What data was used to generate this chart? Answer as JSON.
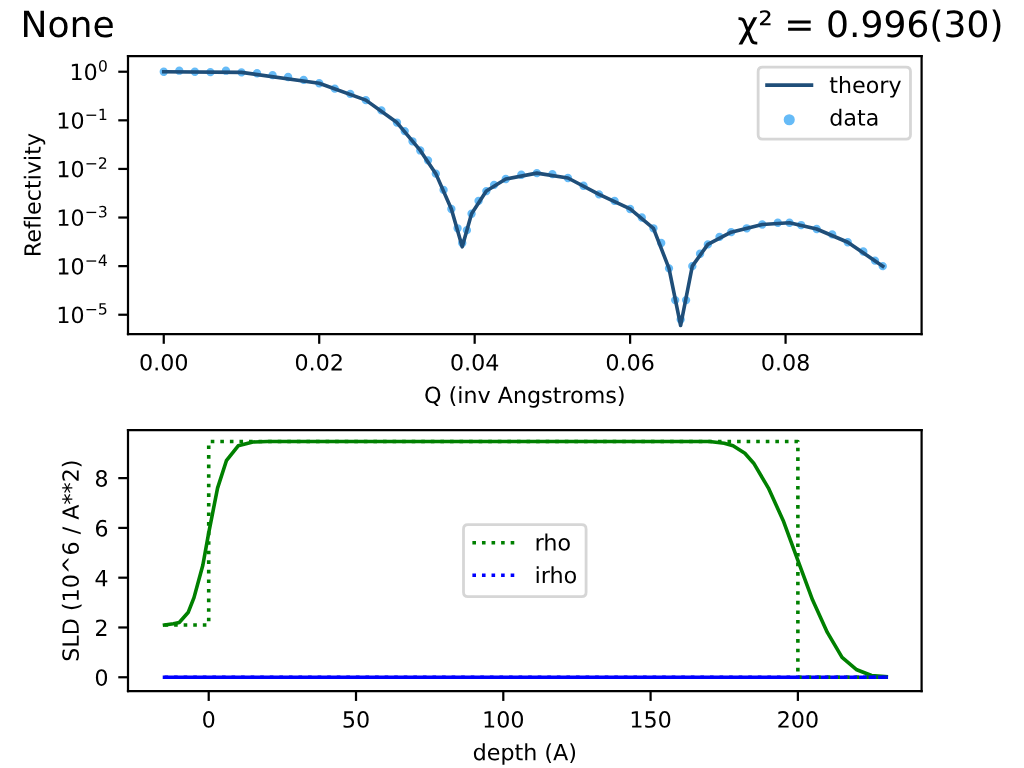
{
  "chart_data": [
    {
      "type": "line",
      "title": "None",
      "annotations": [
        "χ² = 0.996(30)"
      ],
      "xlabel": "Q (inv Angstroms)",
      "ylabel": "Reflectivity",
      "log": "y",
      "legend": "top right",
      "xlim": [
        -0.0046,
        0.0975
      ],
      "ylim": [
        4e-06,
        2.1
      ],
      "xticks": [
        {
          "value": 0,
          "label": "0.00"
        },
        0.02,
        0.04,
        0.06,
        0.08
      ],
      "yticks": [
        {
          "value": 1e-05,
          "label": "10$^{−5}$"
        },
        {
          "value": 0.0001,
          "label": "10$^{−4}$"
        },
        {
          "value": 0.001,
          "label": "10$^{−3}$"
        },
        {
          "value": 0.01,
          "label": "10$^{−2}$"
        },
        {
          "value": 0.1,
          "label": "10$^{−1}$"
        },
        {
          "value": 1,
          "label": "10$^{0}$"
        }
      ],
      "series": [
        {
          "name": "theory",
          "line_style": "solid",
          "color": "#1f4e79",
          "x": [
            0.0,
            0.01,
            0.02,
            0.026,
            0.03,
            0.033,
            0.035,
            0.037,
            0.0384,
            0.0396,
            0.0415,
            0.044,
            0.048,
            0.052,
            0.056,
            0.06,
            0.063,
            0.065,
            0.0665,
            0.068,
            0.07,
            0.073,
            0.077,
            0.0805,
            0.084,
            0.088,
            0.0925
          ],
          "values": [
            1.0,
            0.97,
            0.58,
            0.26,
            0.09,
            0.024,
            0.008,
            0.0015,
            0.00025,
            0.0012,
            0.0035,
            0.0062,
            0.0082,
            0.0065,
            0.003,
            0.0015,
            0.0006,
            9e-05,
            6e-06,
            0.0001,
            0.00028,
            0.0005,
            0.00072,
            0.00078,
            0.00058,
            0.00031,
            0.0001
          ]
        },
        {
          "name": "data",
          "type": "scatter",
          "marker": "circle",
          "color": "#66bbf7",
          "x": [
            0.0,
            0.002,
            0.004,
            0.006,
            0.008,
            0.01,
            0.012,
            0.014,
            0.016,
            0.018,
            0.02,
            0.022,
            0.024,
            0.026,
            0.028,
            0.03,
            0.031,
            0.032,
            0.033,
            0.034,
            0.035,
            0.036,
            0.037,
            0.0378,
            0.0384,
            0.039,
            0.0396,
            0.0405,
            0.0415,
            0.0425,
            0.044,
            0.046,
            0.048,
            0.05,
            0.052,
            0.054,
            0.056,
            0.058,
            0.06,
            0.0615,
            0.063,
            0.064,
            0.065,
            0.0658,
            0.0665,
            0.0672,
            0.068,
            0.069,
            0.07,
            0.0715,
            0.073,
            0.075,
            0.077,
            0.079,
            0.0805,
            0.082,
            0.084,
            0.086,
            0.088,
            0.09,
            0.0915,
            0.0925
          ],
          "values": [
            1.0,
            1.05,
            1.0,
            0.98,
            1.05,
            0.97,
            0.93,
            0.85,
            0.78,
            0.68,
            0.58,
            0.45,
            0.35,
            0.26,
            0.16,
            0.09,
            0.06,
            0.037,
            0.024,
            0.015,
            0.008,
            0.0037,
            0.0015,
            0.0006,
            0.0003,
            0.00055,
            0.0012,
            0.0022,
            0.0035,
            0.0047,
            0.0062,
            0.0076,
            0.0082,
            0.0078,
            0.0065,
            0.0045,
            0.003,
            0.0022,
            0.0015,
            0.001,
            0.0006,
            0.0003,
            9e-05,
            2e-05,
            8e-06,
            2e-05,
            0.0001,
            0.00018,
            0.00028,
            0.0004,
            0.0005,
            0.0006,
            0.00072,
            0.00078,
            0.00078,
            0.0007,
            0.00058,
            0.00045,
            0.00031,
            0.0002,
            0.00013,
            0.0001
          ]
        }
      ]
    },
    {
      "type": "line",
      "xlabel": "depth (A)",
      "ylabel": "SLD (10^6 / A**2)",
      "legend": "center",
      "xlim": [
        -27.4,
        242
      ],
      "ylim": [
        -0.56,
        9.93
      ],
      "xticks": [
        0,
        50,
        100,
        150,
        200
      ],
      "yticks": [
        0,
        2,
        4,
        6,
        8
      ],
      "series": [
        {
          "line_style": "solid",
          "color": "#008000",
          "x": [
            -15,
            -12,
            -10,
            -7,
            -5,
            -2,
            0,
            3,
            6,
            10,
            15,
            20,
            170,
            175,
            178,
            182,
            185,
            190,
            195,
            200,
            205,
            210,
            215,
            220,
            225,
            230
          ],
          "values": [
            2.1,
            2.15,
            2.2,
            2.6,
            3.2,
            4.5,
            5.8,
            7.6,
            8.7,
            9.3,
            9.45,
            9.47,
            9.47,
            9.4,
            9.3,
            9.0,
            8.6,
            7.6,
            6.3,
            4.7,
            3.1,
            1.8,
            0.8,
            0.3,
            0.07,
            0.02
          ]
        },
        {
          "line_style": "solid",
          "color": "#0000ff",
          "x": [
            -15,
            230
          ],
          "values": [
            0,
            0
          ]
        },
        {
          "name": "rho",
          "line_style": "dotted",
          "color": "#008000",
          "x": [
            -15,
            0,
            0,
            200,
            200,
            230
          ],
          "values": [
            2.1,
            2.1,
            9.47,
            9.47,
            0,
            0
          ]
        },
        {
          "name": "irho",
          "line_style": "dotted",
          "color": "#0000ff",
          "x": [
            -15,
            230
          ],
          "values": [
            0,
            0
          ]
        }
      ]
    }
  ]
}
